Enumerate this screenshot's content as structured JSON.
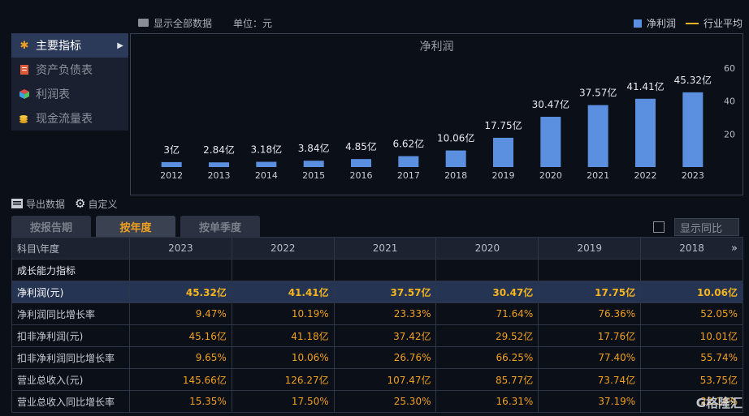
{
  "header": {
    "show_all": "显示全部数据",
    "unit": "单位：元",
    "legend_net": "净利润",
    "legend_avg": "行业平均"
  },
  "nav": {
    "items": [
      {
        "label": "主要指标",
        "icon": "star-icon",
        "active": true
      },
      {
        "label": "资产负债表",
        "icon": "sheet-icon",
        "active": false
      },
      {
        "label": "利润表",
        "icon": "cube-icon",
        "active": false
      },
      {
        "label": "现金流量表",
        "icon": "coins-icon",
        "active": false
      }
    ]
  },
  "chart_data": {
    "type": "bar",
    "title": "净利润",
    "categories": [
      "2012",
      "2013",
      "2014",
      "2015",
      "2016",
      "2017",
      "2018",
      "2019",
      "2020",
      "2021",
      "2022",
      "2023"
    ],
    "values": [
      3,
      2.84,
      3.18,
      3.84,
      4.85,
      6.62,
      10.06,
      17.75,
      30.47,
      37.57,
      41.41,
      45.32
    ],
    "data_labels": [
      "3亿",
      "2.84亿",
      "3.18亿",
      "3.84亿",
      "4.85亿",
      "6.62亿",
      "10.06亿",
      "17.75亿",
      "30.47亿",
      "37.57亿",
      "41.41亿",
      "45.32亿"
    ],
    "y_ticks": [
      20,
      40,
      60
    ],
    "ylim": [
      0,
      60
    ],
    "bar_color": "#5b8fdf"
  },
  "toolbar": {
    "export": "导出数据",
    "custom": "自定义"
  },
  "tabs": [
    {
      "label": "按报告期",
      "active": false
    },
    {
      "label": "按年度",
      "active": true
    },
    {
      "label": "按单季度",
      "active": false
    }
  ],
  "yoy_button": "显示同比",
  "table": {
    "header_first": "科目\\年度",
    "years": [
      "2023",
      "2022",
      "2021",
      "2020",
      "2019",
      "2018"
    ],
    "more": "»",
    "rows": [
      {
        "label": "成长能力指标",
        "section": true,
        "values": [
          "",
          "",
          "",
          "",
          "",
          ""
        ]
      },
      {
        "label": "净利润(元)",
        "highlight": true,
        "values": [
          "45.32亿",
          "41.41亿",
          "37.57亿",
          "30.47亿",
          "17.75亿",
          "10.06亿"
        ]
      },
      {
        "label": "净利润同比增长率",
        "values": [
          "9.47%",
          "10.19%",
          "23.33%",
          "71.64%",
          "76.36%",
          "52.05%"
        ]
      },
      {
        "label": "扣非净利润(元)",
        "values": [
          "45.16亿",
          "41.18亿",
          "37.42亿",
          "29.52亿",
          "17.76亿",
          "10.01亿"
        ]
      },
      {
        "label": "扣非净利润同比增长率",
        "values": [
          "9.65%",
          "10.06%",
          "26.76%",
          "66.25%",
          "77.40%",
          "55.74%"
        ]
      },
      {
        "label": "营业总收入(元)",
        "values": [
          "145.66亿",
          "126.27亿",
          "107.47亿",
          "85.77亿",
          "73.74亿",
          "53.75亿"
        ]
      },
      {
        "label": "营业总收入同比增长率",
        "values": [
          "15.35%",
          "17.50%",
          "25.30%",
          "16.31%",
          "37.19%",
          "22.14%"
        ]
      }
    ]
  },
  "watermark": "G格隆汇"
}
